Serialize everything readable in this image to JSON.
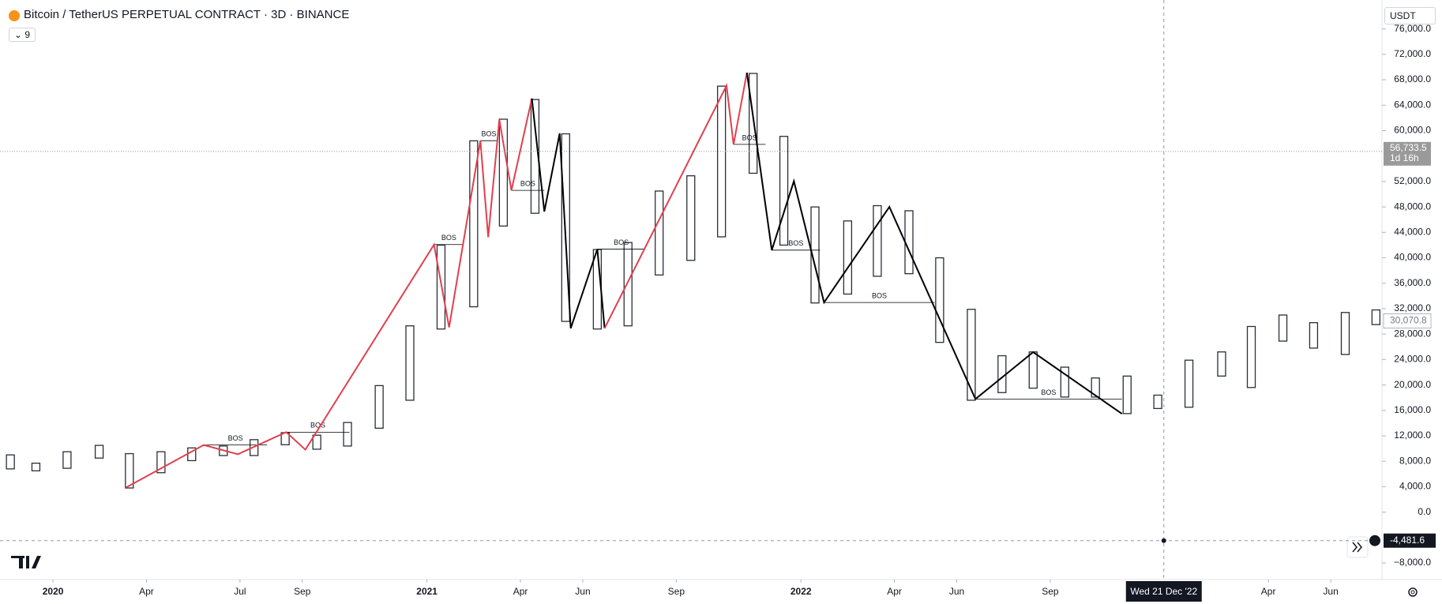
{
  "header": {
    "symbol": "Bitcoin / TetherUS PERPETUAL CONTRACT · 3D · BINANCE",
    "indicators": "9",
    "currency": "USDT"
  },
  "chart_data": {
    "type": "range_bar",
    "x": [
      "2019-11-20",
      "2019-12-15",
      "2020-01-15",
      "2020-02-15",
      "2020-03-15",
      "2020-04-15",
      "2020-05-15",
      "2020-06-15",
      "2020-07-15",
      "2020-08-15",
      "2020-09-15",
      "2020-10-15",
      "2020-11-15",
      "2020-12-15",
      "2021-01-15",
      "2021-02-15",
      "2021-03-15",
      "2021-04-15",
      "2021-05-15",
      "2021-06-15",
      "2021-07-15",
      "2021-08-15",
      "2021-09-15",
      "2021-10-15",
      "2021-11-15",
      "2021-12-15",
      "2022-01-15",
      "2022-02-15",
      "2022-03-15",
      "2022-04-15",
      "2022-05-15",
      "2022-06-15",
      "2022-07-15",
      "2022-08-15",
      "2022-09-15",
      "2022-10-15",
      "2022-11-15",
      "2022-12-15",
      "2023-01-15",
      "2023-02-15",
      "2023-03-15",
      "2023-04-15",
      "2023-05-15",
      "2023-06-15",
      "2023-07-15"
    ],
    "high": [
      9000,
      7700,
      9500,
      10500,
      9200,
      9500,
      10100,
      10400,
      11400,
      12500,
      12100,
      14100,
      19900,
      29300,
      42000,
      58400,
      61800,
      64900,
      59500,
      41300,
      42400,
      50500,
      52900,
      67000,
      69000,
      59100,
      48000,
      45800,
      48200,
      47400,
      40000,
      31900,
      24600,
      25200,
      22800,
      21100,
      21400,
      18400,
      23900,
      25200,
      29200,
      31000,
      29800,
      31400,
      31800
    ],
    "low": [
      6800,
      6500,
      6900,
      8500,
      3800,
      6200,
      8100,
      8900,
      8900,
      10600,
      9900,
      10400,
      13200,
      17600,
      28800,
      32300,
      45000,
      47000,
      30000,
      28800,
      29300,
      37300,
      39600,
      43300,
      53300,
      42000,
      32900,
      34300,
      37100,
      37500,
      26700,
      17600,
      18800,
      19500,
      18100,
      18100,
      15500,
      16300,
      16500,
      21400,
      19600,
      26900,
      25800,
      24800,
      29500
    ],
    "bar_color": "#2a2e39",
    "zigzags": [
      {
        "color": "#e0404f",
        "x": [
          "2020-03-12",
          "2020-05-27",
          "2020-06-29",
          "2020-08-16",
          "2020-09-04",
          "2021-01-08",
          "2021-01-23",
          "2021-02-21",
          "2021-02-28",
          "2021-03-11",
          "2021-03-23",
          "2021-04-12"
        ],
        "values": [
          3900,
          10560,
          9110,
          12580,
          9830,
          42080,
          29060,
          58420,
          43240,
          61740,
          50610,
          65070
        ]
      },
      {
        "color": "#000000",
        "x": [
          "2021-04-12",
          "2021-04-24",
          "2021-05-09",
          "2021-05-20",
          "2021-06-15",
          "2021-06-22"
        ],
        "values": [
          65070,
          47280,
          59580,
          28920,
          41360,
          28920
        ]
      },
      {
        "color": "#e0404f",
        "x": [
          "2021-06-22",
          "2021-10-20",
          "2021-10-27",
          "2021-11-09"
        ],
        "values": [
          28920,
          67090,
          57840,
          69120
        ]
      },
      {
        "color": "#000000",
        "x": [
          "2021-11-09",
          "2021-12-03",
          "2021-12-25",
          "2022-01-24",
          "2022-03-27",
          "2022-06-19",
          "2022-08-15",
          "2022-11-10"
        ],
        "values": [
          69120,
          41210,
          52060,
          32970,
          48010,
          17790,
          25160,
          15470
        ]
      }
    ],
    "bos": [
      {
        "label": "BOS",
        "level": 10560,
        "x": [
          "2020-05-27",
          "2020-07-28"
        ]
      },
      {
        "label": "BOS",
        "level": 12580,
        "x": [
          "2020-08-16",
          "2020-10-17"
        ]
      },
      {
        "label": "BOS",
        "level": 42080,
        "x": [
          "2021-01-08",
          "2021-02-06"
        ]
      },
      {
        "label": "BOS",
        "level": 58420,
        "x": [
          "2021-02-21",
          "2021-03-09"
        ]
      },
      {
        "label": "BOS",
        "level": 50610,
        "x": [
          "2021-03-23",
          "2021-04-24"
        ]
      },
      {
        "label": "BOS",
        "level": 41360,
        "x": [
          "2021-06-15",
          "2021-08-01"
        ]
      },
      {
        "label": "BOS",
        "level": 57840,
        "x": [
          "2021-10-27",
          "2021-11-27"
        ]
      },
      {
        "label": "BOS",
        "level": 41210,
        "x": [
          "2021-12-03",
          "2022-01-20"
        ]
      },
      {
        "label": "BOS",
        "level": 32970,
        "x": [
          "2022-01-24",
          "2022-05-10"
        ]
      },
      {
        "label": "BOS",
        "level": 17790,
        "x": [
          "2022-06-19",
          "2022-11-10"
        ]
      }
    ],
    "last_price": {
      "value": 56733.5,
      "label": "56,733.5",
      "countdown": "1d 16h"
    },
    "mark_price": {
      "value": 30070.8,
      "label": "30,070.8"
    },
    "crosshair": {
      "x": "2022-12-21",
      "x_label": "Wed 21 Dec '22",
      "value": -4481.6,
      "label": "-4,481.6"
    },
    "xlim": [
      "2019-11-10",
      "2023-07-21"
    ],
    "xticks": [
      {
        "value": "2020-01",
        "label": "2020"
      },
      {
        "value": "2020-04",
        "label": "Apr"
      },
      {
        "value": "2020-07",
        "label": "Jul"
      },
      {
        "value": "2020-09",
        "label": "Sep"
      },
      {
        "value": "2021-01",
        "label": "2021"
      },
      {
        "value": "2021-04",
        "label": "Apr"
      },
      {
        "value": "2021-06",
        "label": "Jun"
      },
      {
        "value": "2021-09",
        "label": "Sep"
      },
      {
        "value": "2022-01",
        "label": "2022"
      },
      {
        "value": "2022-04",
        "label": "Apr"
      },
      {
        "value": "2022-06",
        "label": "Jun"
      },
      {
        "value": "2022-09",
        "label": "Sep"
      },
      {
        "value": "2023-04",
        "label": "Apr"
      },
      {
        "value": "2023-06",
        "label": "Jun"
      }
    ],
    "ylim": [
      -10550,
      80550
    ],
    "yticks": [
      {
        "value": -8000,
        "label": "−8,000.0"
      },
      {
        "value": 0,
        "label": "0.0"
      },
      {
        "value": 4000,
        "label": "4,000.0"
      },
      {
        "value": 8000,
        "label": "8,000.0"
      },
      {
        "value": 12000,
        "label": "12,000.0"
      },
      {
        "value": 16000,
        "label": "16,000.0"
      },
      {
        "value": 20000,
        "label": "20,000.0"
      },
      {
        "value": 24000,
        "label": "24,000.0"
      },
      {
        "value": 28000,
        "label": "28,000.0"
      },
      {
        "value": 32000,
        "label": "32,000.0"
      },
      {
        "value": 36000,
        "label": "36,000.0"
      },
      {
        "value": 40000,
        "label": "40,000.0"
      },
      {
        "value": 44000,
        "label": "44,000.0"
      },
      {
        "value": 48000,
        "label": "48,000.0"
      },
      {
        "value": 52000,
        "label": "52,000.0"
      },
      {
        "value": 60000,
        "label": "60,000.0"
      },
      {
        "value": 64000,
        "label": "64,000.0"
      },
      {
        "value": 68000,
        "label": "68,000.0"
      },
      {
        "value": 72000,
        "label": "72,000.0"
      },
      {
        "value": 76000,
        "label": "76,000.0"
      }
    ]
  }
}
